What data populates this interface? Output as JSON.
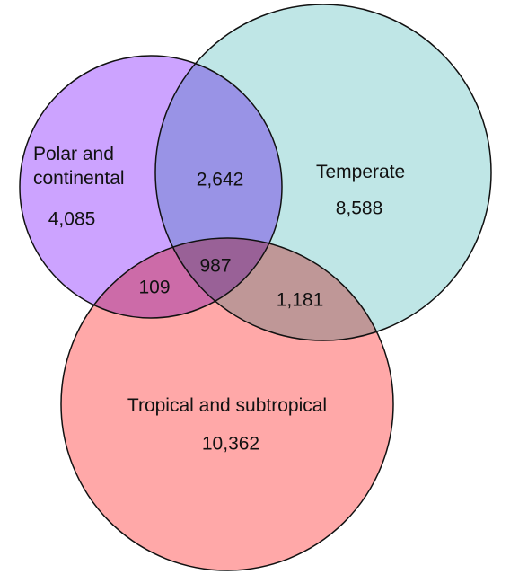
{
  "chart_data": {
    "type": "venn",
    "series": [
      {
        "name": "Polar and continental",
        "color": "#cca3ff"
      },
      {
        "name": "Temperate",
        "color": "#bfe6e6"
      },
      {
        "name": "Tropical and subtropical",
        "color": "#ffa8a8"
      }
    ],
    "values": [
      4085,
      8588,
      10362,
      2642,
      109,
      1181,
      987
    ],
    "value_labels": [
      "4,085",
      "8,588",
      "10,362",
      "2,642",
      "109",
      "1,181",
      "987"
    ]
  }
}
